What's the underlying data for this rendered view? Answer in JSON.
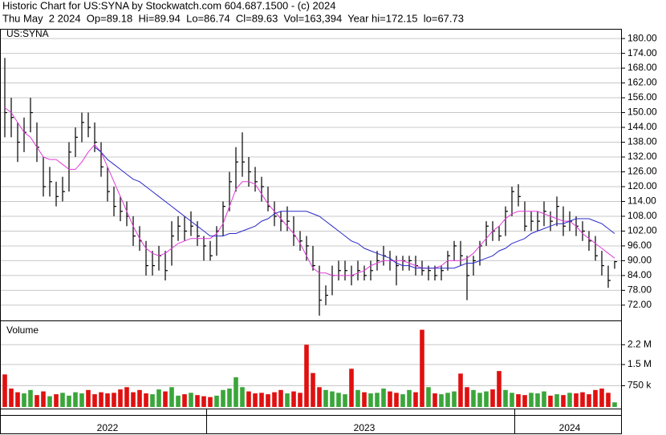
{
  "header": {
    "line1": "Historic Chart for US:SYNA by Stockwatch.com 604.687.1500 - (c) 2024",
    "line2": "Thu May  2 2024  Op=89.18  Hi=89.94  Lo=86.74  Cl=89.63  Vol=163,394  Year hi=172.15  lo=67.73"
  },
  "chart_data": [
    {
      "type": "ohlc",
      "label": "US:SYNA",
      "color": "#000000",
      "grid": true,
      "categories": [
        null,
        null,
        null,
        null,
        null,
        null,
        null,
        null,
        null,
        null,
        null,
        null,
        null,
        null,
        null,
        null,
        "2022",
        null,
        null,
        null,
        null,
        null,
        null,
        null,
        null,
        null,
        null,
        null,
        null,
        null,
        null,
        null,
        null,
        null,
        null,
        null,
        null,
        null,
        null,
        null,
        null,
        null,
        null,
        null,
        null,
        null,
        null,
        null,
        null,
        null,
        null,
        null,
        null,
        null,
        null,
        null,
        "2023",
        null,
        null,
        null,
        null,
        null,
        null,
        null,
        null,
        null,
        null,
        null,
        null,
        null,
        null,
        null,
        null,
        null,
        null,
        null,
        null,
        null,
        null,
        null,
        null,
        null,
        null,
        null,
        null,
        null,
        null,
        null,
        "2024",
        null,
        null,
        null,
        null,
        null,
        null,
        null
      ],
      "high": [
        172.15,
        156,
        146,
        148,
        156,
        146,
        132,
        128,
        122,
        124,
        138,
        144,
        150,
        150,
        146,
        138,
        128,
        120,
        116,
        114,
        108,
        104,
        98,
        94,
        96,
        94,
        106,
        108,
        108,
        110,
        106,
        100,
        98,
        104,
        114,
        126,
        136,
        142,
        132,
        128,
        124,
        120,
        114,
        110,
        112,
        108,
        102,
        100,
        96,
        88,
        80,
        88,
        90,
        90,
        88,
        90,
        88,
        90,
        94,
        96,
        94,
        92,
        92,
        92,
        92,
        90,
        88,
        88,
        88,
        94,
        98,
        98,
        92,
        92,
        98,
        106,
        106,
        104,
        112,
        120,
        121,
        114,
        110,
        110,
        114,
        110,
        116,
        112,
        110,
        108,
        106,
        102,
        100,
        94,
        88,
        89.94
      ],
      "low": [
        140,
        140,
        130,
        134,
        142,
        130,
        116,
        116,
        112,
        114,
        118,
        132,
        138,
        140,
        134,
        124,
        114,
        108,
        106,
        104,
        96,
        94,
        84,
        84,
        86,
        82,
        88,
        98,
        98,
        100,
        96,
        90,
        90,
        92,
        100,
        110,
        118,
        124,
        120,
        118,
        114,
        110,
        104,
        102,
        102,
        96,
        94,
        90,
        86,
        67.73,
        72,
        76,
        82,
        82,
        80,
        82,
        82,
        82,
        86,
        88,
        86,
        80,
        86,
        86,
        84,
        84,
        82,
        82,
        82,
        86,
        90,
        88,
        74,
        84,
        88,
        96,
        98,
        98,
        100,
        108,
        112,
        102,
        102,
        102,
        104,
        102,
        104,
        100,
        102,
        100,
        98,
        94,
        90,
        84,
        79,
        86.74
      ],
      "close": [
        150,
        148,
        138,
        142,
        150,
        136,
        120,
        122,
        116,
        118,
        134,
        140,
        146,
        144,
        138,
        128,
        118,
        112,
        110,
        108,
        100,
        98,
        88,
        88,
        92,
        86,
        100,
        104,
        102,
        104,
        100,
        96,
        92,
        102,
        112,
        122,
        130,
        130,
        126,
        122,
        120,
        112,
        108,
        106,
        106,
        100,
        98,
        96,
        88,
        74,
        76,
        84,
        86,
        86,
        84,
        86,
        84,
        86,
        90,
        92,
        90,
        88,
        90,
        90,
        88,
        86,
        86,
        84,
        86,
        92,
        96,
        92,
        84,
        90,
        96,
        104,
        102,
        100,
        110,
        118,
        116,
        104,
        106,
        106,
        110,
        106,
        112,
        104,
        106,
        104,
        102,
        98,
        92,
        88,
        82,
        89.63
      ],
      "lines": [
        {
          "color": "#e03ad8",
          "values": [
            152,
            150,
            146,
            142,
            140,
            136,
            132,
            131,
            131,
            129,
            127,
            127,
            130,
            134,
            137,
            134,
            128,
            122,
            116,
            110,
            104,
            99,
            95,
            93,
            92,
            93,
            95,
            97,
            98,
            99,
            99,
            99,
            99,
            101,
            105,
            112,
            119,
            122,
            122,
            121,
            117,
            113,
            110,
            107,
            104,
            101,
            97,
            92,
            87,
            85,
            85,
            84,
            84,
            84,
            84,
            85,
            86,
            88,
            89,
            90,
            90,
            90,
            90,
            89,
            88,
            87,
            87,
            87,
            88,
            90,
            90,
            90,
            91,
            93,
            96,
            99,
            102,
            104,
            107,
            109,
            110,
            110,
            110,
            110,
            109,
            108,
            107,
            106,
            106,
            104,
            101,
            99,
            97,
            95,
            93,
            91
          ]
        },
        {
          "color": "#2a2ac8",
          "values": [
            null,
            null,
            null,
            null,
            null,
            null,
            null,
            null,
            null,
            null,
            null,
            null,
            null,
            null,
            136,
            134,
            131,
            129,
            127,
            125,
            123,
            122,
            120,
            118,
            116,
            114,
            112,
            110,
            108,
            106,
            104,
            102,
            100,
            100,
            100,
            101,
            101,
            102,
            103,
            104,
            106,
            107,
            109,
            110,
            110,
            110,
            110,
            110,
            109,
            108,
            106,
            104,
            102,
            100,
            98,
            97,
            95,
            94,
            93,
            92,
            91,
            89,
            88,
            88,
            87,
            87,
            87,
            87,
            87,
            87,
            87,
            88,
            89,
            89,
            90,
            91,
            92,
            94,
            95,
            97,
            98,
            99,
            101,
            102,
            103,
            104,
            105,
            105,
            106,
            107,
            107,
            107,
            106,
            105,
            103,
            101
          ]
        }
      ],
      "ylim": [
        65.8,
        183.6
      ],
      "yticks": [
        {
          "value": 72,
          "label": "72.00"
        },
        {
          "value": 78,
          "label": "78.00"
        },
        {
          "value": 84,
          "label": "84.00"
        },
        {
          "value": 90,
          "label": "90.00"
        },
        {
          "value": 96,
          "label": "96.00"
        },
        {
          "value": 102,
          "label": "102.00"
        },
        {
          "value": 108,
          "label": "108.00"
        },
        {
          "value": 114,
          "label": "114.00"
        },
        {
          "value": 120,
          "label": "120.00"
        },
        {
          "value": 126,
          "label": "126.00"
        },
        {
          "value": 132,
          "label": "132.00"
        },
        {
          "value": 138,
          "label": "138.00"
        },
        {
          "value": 144,
          "label": "144.00"
        },
        {
          "value": 150,
          "label": "150.00"
        },
        {
          "value": 156,
          "label": "156.00"
        },
        {
          "value": 162,
          "label": "162.00"
        },
        {
          "value": 168,
          "label": "168.00"
        },
        {
          "value": 174,
          "label": "174.00"
        },
        {
          "value": 180,
          "label": "180.00"
        }
      ]
    },
    {
      "type": "volume",
      "label": "Volume",
      "up_color": "#3aa63a",
      "down_color": "#e01010",
      "values": [
        1150000,
        650000,
        520000,
        480000,
        600000,
        420000,
        550000,
        380000,
        450000,
        500000,
        400000,
        520000,
        480000,
        600000,
        450000,
        520000,
        480000,
        500000,
        620000,
        700000,
        520000,
        600000,
        480000,
        450000,
        620000,
        550000,
        700000,
        400000,
        450000,
        500000,
        420000,
        380000,
        350000,
        400000,
        600000,
        650000,
        1050000,
        700000,
        550000,
        480000,
        500000,
        450000,
        520000,
        600000,
        480000,
        550000,
        500000,
        2200000,
        1200000,
        700000,
        600000,
        550000,
        500000,
        450000,
        1350000,
        600000,
        520000,
        480000,
        500000,
        650000,
        550000,
        500000,
        450000,
        600000,
        520000,
        2730000,
        700000,
        480000,
        450000,
        500000,
        550000,
        1180000,
        700000,
        600000,
        500000,
        550000,
        620000,
        1270000,
        600000,
        500000,
        450000,
        420000,
        500000,
        480000,
        550000,
        400000,
        450000,
        420000,
        500000,
        480000,
        520000,
        450000,
        600000,
        650000,
        500000,
        163394
      ],
      "ylim": [
        0,
        3030000
      ],
      "yticks": [
        {
          "value": 750000,
          "label": "750 k"
        },
        {
          "value": 1500000,
          "label": "1.5 M"
        },
        {
          "value": 2200000,
          "label": "2.2 M"
        }
      ]
    }
  ]
}
